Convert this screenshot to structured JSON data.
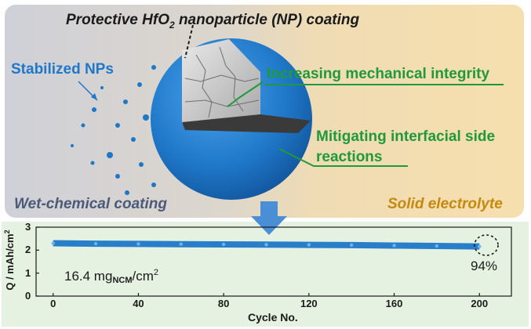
{
  "top_panel": {
    "title_before": "Protective HfO",
    "title_subscript": "2",
    "title_after": " nanoparticle (NP) coating",
    "nanoparticles_label": "Stabilized NPs",
    "integrity_label": "Increasing mechanical integrity",
    "side_reactions_line1": "Mitigating interfacial side",
    "side_reactions_line2": "reactions",
    "left_caption": "Wet-chemical coating",
    "right_caption": "Solid electrolyte",
    "colors": {
      "left_bg": "#cfd0d8",
      "right_bg": "#f5deb0",
      "sphere_blue": "#1f77c8",
      "label_green": "#1f9a3a",
      "solid_gold": "#c48a10"
    }
  },
  "arrow": {
    "icon": "down-arrow-icon",
    "color": "#4a8fd6"
  },
  "bottom_panel": {
    "loading_prefix": "16.4 mg",
    "loading_subscript": "NCM",
    "loading_suffix": "/cm",
    "loading_superscript": "2",
    "retention_label": "94%",
    "colors": {
      "bg": "#e6f2e1",
      "series": "#1f77c8"
    }
  },
  "chart_data": {
    "type": "line",
    "xlabel": "Cycle No.",
    "ylabel_main": "Q / mAh/cm",
    "ylabel_sup": "2",
    "xlim": [
      -8,
      215
    ],
    "ylim": [
      0,
      3
    ],
    "xticks": [
      0,
      40,
      80,
      120,
      160,
      200
    ],
    "yticks": [
      0,
      1,
      2,
      3
    ],
    "series": [
      {
        "x": [
          0,
          20,
          40,
          60,
          80,
          100,
          120,
          140,
          160,
          180,
          200
        ],
        "y": [
          2.3,
          2.28,
          2.27,
          2.26,
          2.25,
          2.24,
          2.23,
          2.22,
          2.2,
          2.18,
          2.16
        ]
      }
    ]
  }
}
